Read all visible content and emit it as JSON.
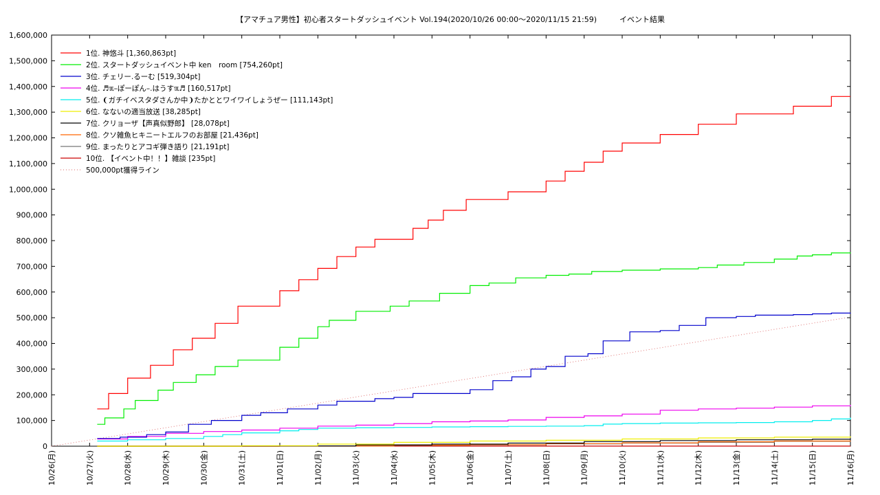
{
  "chart_data": {
    "type": "line",
    "title": "【アマチュア男性】初心者スタートダッシュイベント Vol.194(2020/10/26 00:00〜2020/11/15 21:59)　　　イベント結果",
    "xlabel": "",
    "ylabel": "",
    "grid": true,
    "legend_position": "top-left",
    "x_range": [
      "10/26(月)",
      "11/16(月)"
    ],
    "ylim": [
      0,
      1600000
    ],
    "x_ticks": [
      "10/26(月)",
      "10/27(火)",
      "10/28(水)",
      "10/29(木)",
      "10/30(金)",
      "10/31(土)",
      "11/01(日)",
      "11/02(月)",
      "11/03(火)",
      "11/04(水)",
      "11/05(木)",
      "11/06(金)",
      "11/07(土)",
      "11/08(日)",
      "11/09(月)",
      "11/10(火)",
      "11/11(水)",
      "11/12(木)",
      "11/13(金)",
      "11/14(土)",
      "11/15(日)",
      "11/16(月)"
    ],
    "y_ticks": [
      "0",
      "100,000",
      "200,000",
      "300,000",
      "400,000",
      "500,000",
      "600,000",
      "700,000",
      "800,000",
      "900,000",
      "1,000,000",
      "1,100,000",
      "1,200,000",
      "1,300,000",
      "1,400,000",
      "1,500,000",
      "1,600,000"
    ],
    "series": [
      {
        "name": "1位. 神悠斗 [1,360,863pt]",
        "color": "#ff0000",
        "step": true,
        "x": [
          1.2,
          1.5,
          2.0,
          2.6,
          3.2,
          3.7,
          4.3,
          4.9,
          5.4,
          6.0,
          6.5,
          7.0,
          7.5,
          8.0,
          8.5,
          8.9,
          9.5,
          9.9,
          10.3,
          10.9,
          11.5,
          12.0,
          12.5,
          13.0,
          13.5,
          14.0,
          14.5,
          15.0,
          15.5,
          16.0,
          16.5,
          17.0,
          17.5,
          18.0,
          18.5,
          19.0,
          19.5,
          20.0,
          20.5,
          21.0
        ],
        "y": [
          145000,
          205000,
          265000,
          315000,
          375000,
          420000,
          478000,
          545000,
          545000,
          605000,
          648000,
          692000,
          738000,
          775000,
          805000,
          805000,
          848000,
          880000,
          918000,
          960000,
          960000,
          990000,
          990000,
          1032000,
          1070000,
          1105000,
          1148000,
          1180000,
          1180000,
          1213000,
          1213000,
          1253000,
          1253000,
          1293000,
          1293000,
          1293000,
          1323000,
          1323000,
          1361000,
          1361000
        ]
      },
      {
        "name": "2位. スタートダッシュイベント中 ken　room [754,260pt]",
        "color": "#00ee00",
        "step": true,
        "x": [
          1.2,
          1.4,
          1.9,
          2.2,
          2.8,
          3.2,
          3.8,
          4.3,
          4.9,
          5.5,
          6.0,
          6.5,
          7.0,
          7.3,
          8.0,
          8.3,
          8.9,
          9.4,
          10.2,
          11.0,
          11.5,
          12.2,
          13.0,
          13.6,
          14.2,
          15.0,
          16.0,
          17.0,
          17.5,
          18.2,
          19.0,
          19.6,
          20.0,
          20.5,
          21.0
        ],
        "y": [
          85000,
          110000,
          145000,
          178000,
          218000,
          248000,
          278000,
          310000,
          335000,
          335000,
          385000,
          420000,
          465000,
          490000,
          525000,
          525000,
          545000,
          565000,
          595000,
          625000,
          635000,
          655000,
          665000,
          670000,
          680000,
          685000,
          690000,
          695000,
          705000,
          715000,
          728000,
          740000,
          745000,
          752000,
          754000
        ]
      },
      {
        "name": "3位. チェリー.るーむ [519,304pt]",
        "color": "#0000cc",
        "step": true,
        "x": [
          1.2,
          1.8,
          2.5,
          3.0,
          3.6,
          4.2,
          5.0,
          5.5,
          6.2,
          7.0,
          7.5,
          8.5,
          9.0,
          9.5,
          10.2,
          11.0,
          11.6,
          12.1,
          12.6,
          13.0,
          13.5,
          14.1,
          14.5,
          15.2,
          16.0,
          16.5,
          17.2,
          18.0,
          18.5,
          19.0,
          19.5,
          20.0,
          20.5,
          21.0
        ],
        "y": [
          30000,
          35000,
          45000,
          55000,
          85000,
          100000,
          120000,
          130000,
          145000,
          160000,
          175000,
          185000,
          190000,
          205000,
          205000,
          220000,
          255000,
          270000,
          300000,
          310000,
          350000,
          360000,
          410000,
          445000,
          450000,
          470000,
          500000,
          505000,
          510000,
          510000,
          512000,
          515000,
          518000,
          519000
        ]
      },
      {
        "name": "4位. ♬ℼ–ぽーぽん–.はうすℼ♬ [160,517pt]",
        "color": "#ee00ee",
        "step": true,
        "x": [
          1.2,
          2.0,
          3.0,
          4.0,
          5.0,
          6.0,
          7.0,
          8.0,
          9.0,
          10.0,
          11.0,
          12.0,
          13.0,
          14.0,
          15.0,
          16.0,
          17.0,
          18.0,
          19.0,
          20.0,
          21.0
        ],
        "y": [
          28000,
          38000,
          50000,
          57000,
          63000,
          70000,
          78000,
          82000,
          88000,
          95000,
          98000,
          102000,
          112000,
          118000,
          125000,
          140000,
          145000,
          148000,
          152000,
          157000,
          160500
        ]
      },
      {
        "name": "5位. ❨ガチイベスタダさんか中❩たかととワイワイしょうぜー [111,143pt]",
        "color": "#00eeee",
        "step": true,
        "x": [
          1.2,
          2.0,
          3.0,
          4.0,
          4.5,
          5.0,
          6.0,
          6.5,
          7.0,
          8.0,
          9.0,
          10.0,
          11.0,
          12.0,
          13.0,
          14.0,
          14.5,
          15.0,
          16.0,
          17.0,
          18.0,
          19.0,
          20.0,
          20.5,
          21.0
        ],
        "y": [
          20000,
          25000,
          30000,
          38000,
          45000,
          52000,
          60000,
          65000,
          70000,
          72000,
          73000,
          75000,
          76000,
          77000,
          78000,
          80000,
          86000,
          88000,
          90000,
          91000,
          92000,
          95000,
          100000,
          106000,
          111000
        ]
      },
      {
        "name": "6位. なないの適当放送 [38,285pt]",
        "color": "#eeee00",
        "step": true,
        "x": [
          1.2,
          5.0,
          7.0,
          9.0,
          11.0,
          13.0,
          15.0,
          17.0,
          19.0,
          21.0
        ],
        "y": [
          0,
          2000,
          8000,
          15000,
          20000,
          23000,
          28000,
          32000,
          35000,
          38000
        ]
      },
      {
        "name": "7位. クリョーザ【声真似野郎】 [28,078pt]",
        "color": "#000000",
        "step": true,
        "x": [
          1.2,
          5.0,
          8.0,
          10.0,
          12.0,
          14.0,
          16.0,
          18.0,
          20.0,
          21.0
        ],
        "y": [
          0,
          1000,
          5000,
          8000,
          12000,
          18000,
          22000,
          25000,
          27000,
          28000
        ]
      },
      {
        "name": "8位. クソ雑魚ヒキニートエルフのお部屋 [21,436pt]",
        "color": "#ff6600",
        "step": true,
        "x": [
          1.2,
          6.0,
          9.0,
          11.0,
          13.0,
          15.0,
          17.0,
          19.0,
          21.0
        ],
        "y": [
          0,
          1000,
          4000,
          6000,
          10000,
          13000,
          17000,
          20000,
          21400
        ]
      },
      {
        "name": "9位. まったりとアコギ弾き語り [21,191pt]",
        "color": "#777777",
        "step": true,
        "x": [
          1.2,
          6.0,
          9.0,
          11.0,
          13.0,
          15.0,
          17.0,
          19.0,
          21.0
        ],
        "y": [
          0,
          500,
          3000,
          5000,
          9000,
          12000,
          15000,
          19000,
          21200
        ]
      },
      {
        "name": "10位. 【イベント中！！】雑談 [235pt]",
        "color": "#cc0000",
        "step": true,
        "x": [
          1.2,
          21.0
        ],
        "y": [
          235,
          235
        ]
      },
      {
        "name": "500,000pt獲得ライン",
        "color": "#dd6666",
        "dashed": true,
        "step": false,
        "x": [
          0,
          20.9
        ],
        "y": [
          0,
          500000
        ]
      }
    ]
  }
}
